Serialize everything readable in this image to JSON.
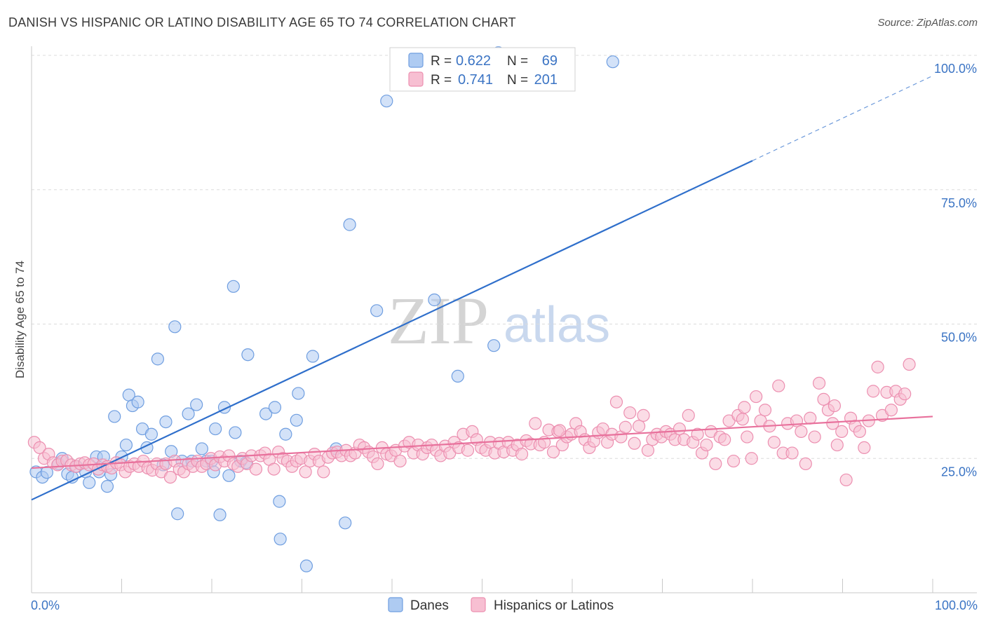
{
  "title": "DANISH VS HISPANIC OR LATINO DISABILITY AGE 65 TO 74 CORRELATION CHART",
  "source": "Source: ZipAtlas.com",
  "watermark": {
    "zip": "ZIP",
    "atlas": "atlas"
  },
  "colors": {
    "danes_fill": "#aecbf2",
    "danes_stroke": "#6f9ee0",
    "danes_line": "#2f6fcb",
    "hisp_fill": "#f7bfd2",
    "hisp_stroke": "#ec8fb0",
    "hisp_line": "#e8719c",
    "accent_text": "#3b74c4",
    "grid": "#dcdcdc"
  },
  "legend": {
    "r_label": "R =",
    "n_label": "N =",
    "items": [
      {
        "r": "0.622",
        "n": "69"
      },
      {
        "r": "0.741",
        "n": "201"
      }
    ]
  },
  "bottom_legend": [
    "Danes",
    "Hispanics or Latinos"
  ],
  "chart_data": {
    "type": "scatter",
    "title": "DANISH VS HISPANIC OR LATINO DISABILITY AGE 65 TO 74 CORRELATION CHART",
    "xlabel": "",
    "ylabel": "Disability Age 65 to 74",
    "xlim": [
      0,
      100
    ],
    "ylim": [
      0,
      100
    ],
    "x_tick_labels": [
      "0.0%",
      "100.0%"
    ],
    "y_tick_labels": [
      "25.0%",
      "50.0%",
      "75.0%",
      "100.0%"
    ],
    "y_ticks": [
      25,
      50,
      75,
      100
    ],
    "legend_position": "top-center",
    "grid": true,
    "series": [
      {
        "name": "Danes",
        "r": 0.622,
        "n": 69,
        "trend": {
          "x0": 0,
          "y0": 17.3,
          "x1": 80,
          "y1": 80.4,
          "dashed_to": [
            100,
            96.2
          ]
        },
        "points": [
          [
            0.5,
            22.5
          ],
          [
            1.2,
            21.5
          ],
          [
            1.7,
            22.4
          ],
          [
            3,
            24
          ],
          [
            3.4,
            25
          ],
          [
            4,
            22.1
          ],
          [
            4.5,
            21.5
          ],
          [
            5,
            23.5
          ],
          [
            6,
            22.5
          ],
          [
            6.4,
            20.5
          ],
          [
            7.2,
            25.3
          ],
          [
            7.5,
            22.5
          ],
          [
            8,
            25.3
          ],
          [
            8.4,
            19.8
          ],
          [
            8.8,
            22
          ],
          [
            9.2,
            32.8
          ],
          [
            10,
            25.3
          ],
          [
            10.5,
            27.5
          ],
          [
            10.8,
            36.8
          ],
          [
            11.2,
            34.8
          ],
          [
            11.8,
            35.5
          ],
          [
            12.3,
            30.5
          ],
          [
            12.8,
            27
          ],
          [
            13.3,
            29.5
          ],
          [
            14,
            43.5
          ],
          [
            14.6,
            23.8
          ],
          [
            14.9,
            31.8
          ],
          [
            15.5,
            26.3
          ],
          [
            15.9,
            49.5
          ],
          [
            16.2,
            14.7
          ],
          [
            16.7,
            24.5
          ],
          [
            17.4,
            33.3
          ],
          [
            17.8,
            24.5
          ],
          [
            18.3,
            35
          ],
          [
            18.9,
            26.8
          ],
          [
            19.4,
            24.5
          ],
          [
            20,
            24.5
          ],
          [
            20.2,
            22.5
          ],
          [
            20.4,
            30.5
          ],
          [
            20.9,
            14.5
          ],
          [
            21.4,
            34.5
          ],
          [
            21.9,
            21.8
          ],
          [
            22.4,
            57
          ],
          [
            22.6,
            29.8
          ],
          [
            23.2,
            24.5
          ],
          [
            23.8,
            24.2
          ],
          [
            24,
            44.3
          ],
          [
            26,
            33.3
          ],
          [
            27,
            34.5
          ],
          [
            27.5,
            17
          ],
          [
            27.6,
            10
          ],
          [
            28.2,
            29.5
          ],
          [
            29.4,
            32.1
          ],
          [
            29.6,
            37.1
          ],
          [
            30.5,
            5
          ],
          [
            31.2,
            44
          ],
          [
            33.8,
            26.8
          ],
          [
            34.8,
            13
          ],
          [
            35.3,
            68.5
          ],
          [
            38.3,
            52.5
          ],
          [
            39.4,
            91.5
          ],
          [
            44.7,
            54.5
          ],
          [
            47.3,
            40.3
          ],
          [
            51.3,
            46
          ],
          [
            51.8,
            100.5
          ],
          [
            64.5,
            98.8
          ]
        ]
      },
      {
        "name": "Hispanics or Latinos",
        "r": 0.741,
        "n": 201,
        "trend": {
          "x0": 0,
          "y0": 23.2,
          "x1": 100,
          "y1": 32.8
        },
        "points": [
          [
            0.3,
            28
          ],
          [
            0.9,
            27
          ],
          [
            1.4,
            25
          ],
          [
            1.9,
            25.8
          ],
          [
            2.4,
            24.2
          ],
          [
            2.9,
            23.8
          ],
          [
            3.4,
            24.5
          ],
          [
            3.9,
            24.6
          ],
          [
            4.4,
            23.8
          ],
          [
            4.9,
            23.5
          ],
          [
            5.4,
            24
          ],
          [
            5.9,
            24.2
          ],
          [
            6.4,
            23.8
          ],
          [
            6.9,
            24
          ],
          [
            7.4,
            23
          ],
          [
            7.9,
            23.8
          ],
          [
            8.4,
            23.5
          ],
          [
            8.9,
            23.2
          ],
          [
            9.4,
            24.2
          ],
          [
            9.9,
            23.8
          ],
          [
            10.4,
            22.5
          ],
          [
            10.9,
            23.5
          ],
          [
            11.4,
            24
          ],
          [
            11.9,
            23.5
          ],
          [
            12.4,
            24.5
          ],
          [
            12.9,
            23.2
          ],
          [
            13.4,
            22.8
          ],
          [
            13.9,
            24
          ],
          [
            14.4,
            22.5
          ],
          [
            14.9,
            24
          ],
          [
            15.4,
            21.5
          ],
          [
            15.9,
            24.5
          ],
          [
            16.4,
            23
          ],
          [
            16.9,
            22.5
          ],
          [
            17.4,
            24
          ],
          [
            17.9,
            23.5
          ],
          [
            18.4,
            24.5
          ],
          [
            18.9,
            23.5
          ],
          [
            19.4,
            24
          ],
          [
            19.9,
            25
          ],
          [
            20.4,
            23.8
          ],
          [
            20.9,
            25.3
          ],
          [
            21.4,
            24.5
          ],
          [
            21.9,
            25.5
          ],
          [
            22.4,
            24
          ],
          [
            22.9,
            23.5
          ],
          [
            23.4,
            25
          ],
          [
            23.9,
            24
          ],
          [
            24.4,
            25.5
          ],
          [
            24.9,
            23
          ],
          [
            25.4,
            25.5
          ],
          [
            25.9,
            26
          ],
          [
            26.4,
            24.8
          ],
          [
            26.9,
            23
          ],
          [
            27.4,
            26.2
          ],
          [
            27.9,
            25
          ],
          [
            28.4,
            24.5
          ],
          [
            28.9,
            23.5
          ],
          [
            29.4,
            24.5
          ],
          [
            29.9,
            25
          ],
          [
            30.4,
            22.5
          ],
          [
            30.9,
            24.5
          ],
          [
            31.4,
            25.8
          ],
          [
            31.9,
            24.5
          ],
          [
            32.4,
            22.5
          ],
          [
            32.9,
            25.2
          ],
          [
            33.4,
            26
          ],
          [
            33.9,
            26.2
          ],
          [
            34.4,
            25.5
          ],
          [
            34.9,
            26.5
          ],
          [
            35.4,
            25.5
          ],
          [
            35.9,
            26
          ],
          [
            36.4,
            27.5
          ],
          [
            36.9,
            27
          ],
          [
            37.4,
            26.2
          ],
          [
            37.9,
            25.3
          ],
          [
            38.4,
            24
          ],
          [
            38.9,
            27
          ],
          [
            39.4,
            25.8
          ],
          [
            39.9,
            25.5
          ],
          [
            40.4,
            26.5
          ],
          [
            40.9,
            24.5
          ],
          [
            41.4,
            27.3
          ],
          [
            41.9,
            28
          ],
          [
            42.4,
            26
          ],
          [
            42.9,
            27.5
          ],
          [
            43.4,
            25.8
          ],
          [
            43.9,
            27
          ],
          [
            44.4,
            27.5
          ],
          [
            44.9,
            26.5
          ],
          [
            45.4,
            25.5
          ],
          [
            45.9,
            27.3
          ],
          [
            46.4,
            26
          ],
          [
            46.9,
            28
          ],
          [
            47.4,
            27
          ],
          [
            47.9,
            29.5
          ],
          [
            48.4,
            26.5
          ],
          [
            48.9,
            30
          ],
          [
            49.4,
            28.5
          ],
          [
            49.9,
            27
          ],
          [
            50.4,
            26.5
          ],
          [
            50.9,
            28
          ],
          [
            51.4,
            26
          ],
          [
            51.9,
            27.8
          ],
          [
            52.4,
            26.2
          ],
          [
            52.9,
            28
          ],
          [
            53.4,
            26.5
          ],
          [
            53.9,
            27.5
          ],
          [
            54.4,
            25.8
          ],
          [
            54.9,
            28.3
          ],
          [
            55.4,
            27.7
          ],
          [
            55.9,
            31.5
          ],
          [
            56.4,
            27.5
          ],
          [
            56.9,
            28
          ],
          [
            57.4,
            30.3
          ],
          [
            57.9,
            26.2
          ],
          [
            58.4,
            30
          ],
          [
            58.9,
            27.5
          ],
          [
            59.4,
            29
          ],
          [
            59.9,
            29.5
          ],
          [
            60.4,
            31.5
          ],
          [
            60.9,
            30
          ],
          [
            61.4,
            28.5
          ],
          [
            61.9,
            27
          ],
          [
            62.4,
            28.2
          ],
          [
            62.9,
            29.8
          ],
          [
            63.4,
            30.5
          ],
          [
            63.9,
            28
          ],
          [
            64.4,
            29.5
          ],
          [
            64.9,
            35.5
          ],
          [
            65.4,
            29
          ],
          [
            65.9,
            30.8
          ],
          [
            66.4,
            33.5
          ],
          [
            66.9,
            27.8
          ],
          [
            67.4,
            31
          ],
          [
            67.9,
            33
          ],
          [
            68.4,
            26.5
          ],
          [
            68.9,
            28.5
          ],
          [
            69.4,
            29.5
          ],
          [
            69.9,
            29
          ],
          [
            70.4,
            30
          ],
          [
            70.9,
            29.5
          ],
          [
            71.4,
            28.5
          ],
          [
            71.9,
            30.5
          ],
          [
            72.4,
            28.5
          ],
          [
            72.9,
            33
          ],
          [
            73.4,
            28
          ],
          [
            73.9,
            29.5
          ],
          [
            74.4,
            26
          ],
          [
            74.9,
            27.5
          ],
          [
            75.4,
            30
          ],
          [
            75.9,
            24
          ],
          [
            76.4,
            29
          ],
          [
            76.9,
            28.5
          ],
          [
            77.4,
            32
          ],
          [
            77.9,
            24.5
          ],
          [
            78.4,
            33
          ],
          [
            78.9,
            32.3
          ],
          [
            79.4,
            29
          ],
          [
            79.9,
            25
          ],
          [
            80.4,
            36.5
          ],
          [
            80.9,
            32
          ],
          [
            81.4,
            34
          ],
          [
            81.9,
            31
          ],
          [
            82.4,
            28
          ],
          [
            82.9,
            38.5
          ],
          [
            83.4,
            26
          ],
          [
            83.9,
            31.5
          ],
          [
            84.4,
            26
          ],
          [
            84.9,
            32
          ],
          [
            85.4,
            30
          ],
          [
            85.9,
            24
          ],
          [
            86.4,
            32.5
          ],
          [
            86.9,
            29
          ],
          [
            87.4,
            39
          ],
          [
            87.9,
            36
          ],
          [
            88.4,
            34
          ],
          [
            88.9,
            31.5
          ],
          [
            89.4,
            27.5
          ],
          [
            89.9,
            30
          ],
          [
            90.4,
            21
          ],
          [
            90.9,
            32.5
          ],
          [
            91.4,
            31
          ],
          [
            91.9,
            30
          ],
          [
            92.4,
            27
          ],
          [
            92.9,
            32
          ],
          [
            93.4,
            37.5
          ],
          [
            93.9,
            42
          ],
          [
            94.4,
            33
          ],
          [
            94.9,
            37.3
          ],
          [
            95.4,
            34
          ],
          [
            95.9,
            37.5
          ],
          [
            96.4,
            36
          ],
          [
            96.9,
            37
          ],
          [
            97.4,
            42.5
          ],
          [
            89.1,
            34.8
          ],
          [
            79.1,
            34.5
          ],
          [
            58.6,
            30.2
          ]
        ]
      }
    ]
  }
}
